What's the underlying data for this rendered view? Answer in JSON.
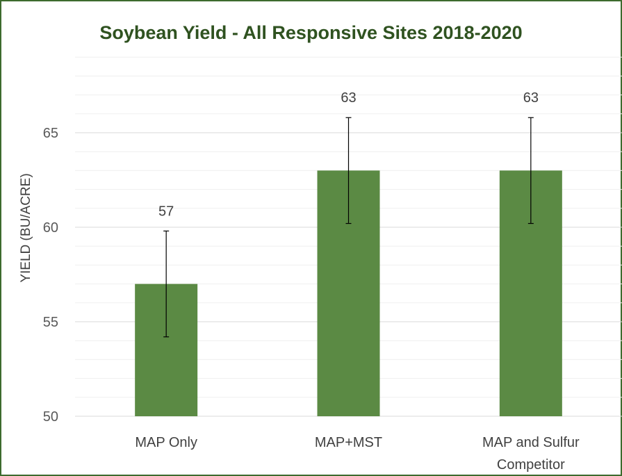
{
  "chart_data": {
    "type": "bar",
    "title": "Soybean Yield - All Responsive Sites 2018-2020",
    "ylabel": "YIELD (BU/ACRE)",
    "xlabel": "",
    "categories": [
      [
        "MAP Only"
      ],
      [
        "MAP+MST"
      ],
      [
        "MAP and Sulfur",
        "Competitor"
      ]
    ],
    "values": [
      57,
      63,
      63
    ],
    "error_bars": [
      {
        "low": 54.2,
        "high": 59.8
      },
      {
        "low": 60.2,
        "high": 65.8
      },
      {
        "low": 60.2,
        "high": 65.8
      }
    ],
    "data_labels": [
      "57",
      "63",
      "63"
    ],
    "ylim": [
      50,
      69
    ],
    "yticks": [
      50,
      55,
      60,
      65
    ],
    "grid": true,
    "bar_color": "#5b8a44",
    "frame_color": "#3d6b2e",
    "title_color": "#2f5220"
  }
}
